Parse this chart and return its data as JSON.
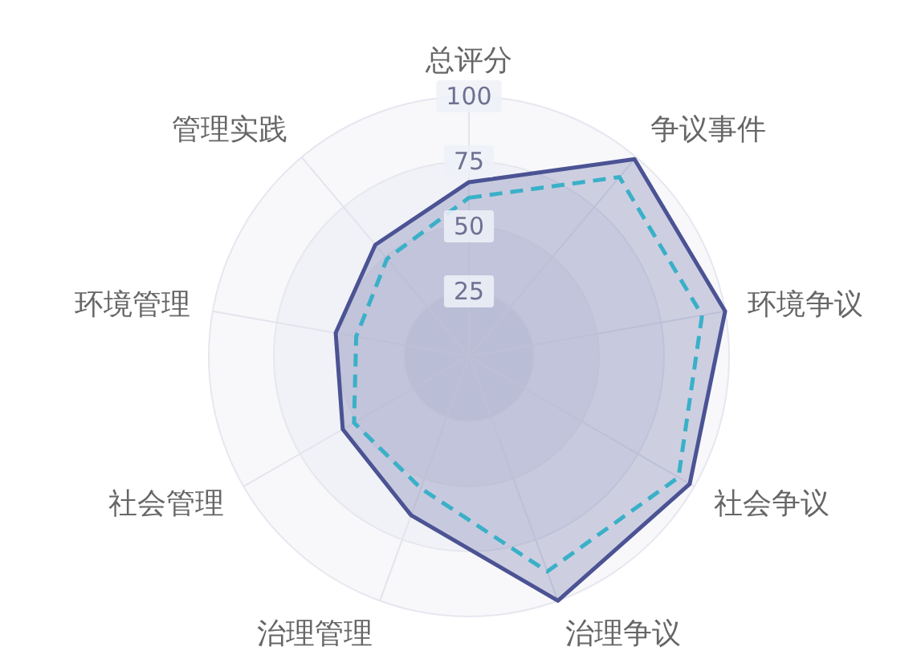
{
  "chart_data": {
    "type": "radar",
    "categories": [
      "总评分",
      "争议事件",
      "环境争议",
      "社会争议",
      "治理争议",
      "治理管理",
      "社会管理",
      "环境管理",
      "管理实践"
    ],
    "series": [
      {
        "color": "#4b5394",
        "line_style": "solid",
        "values": [
          67,
          99,
          100,
          98,
          100,
          65,
          56,
          52,
          56
        ]
      },
      {
        "color": "#3ab0c8",
        "line_style": "dashed",
        "values": [
          61,
          90,
          91,
          93,
          88,
          54,
          51,
          44,
          49
        ]
      }
    ],
    "ylim": [
      0,
      100
    ],
    "yticks": [
      25,
      50,
      75,
      100
    ],
    "grid": true,
    "marker": "none"
  }
}
